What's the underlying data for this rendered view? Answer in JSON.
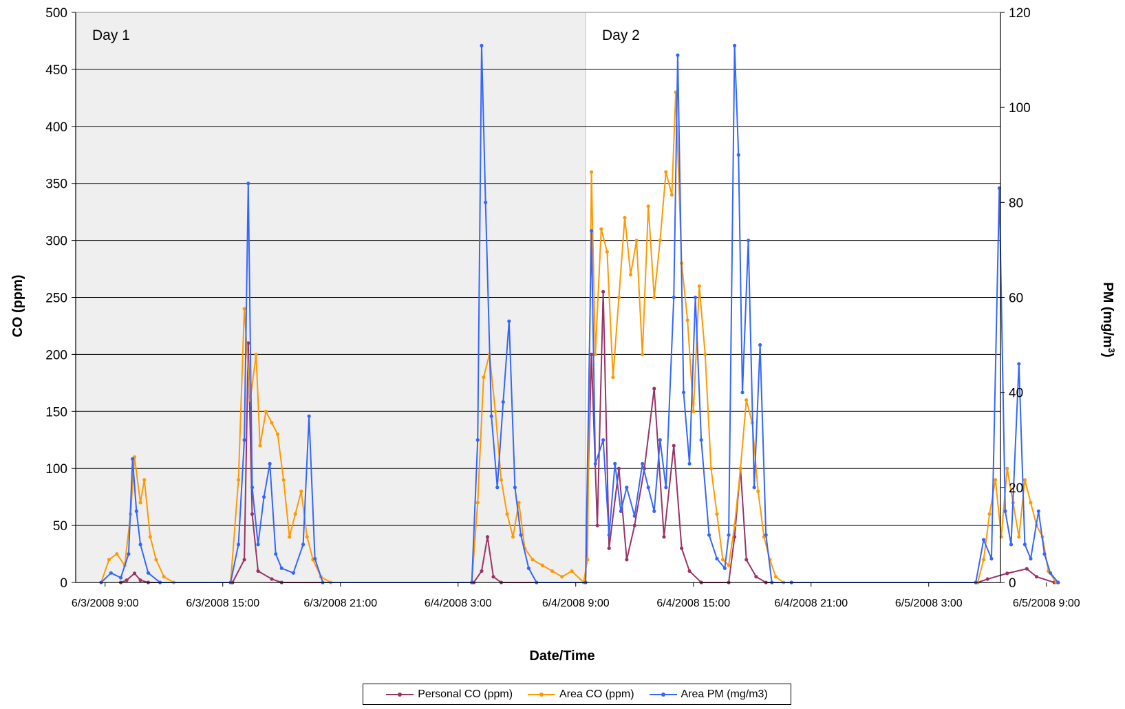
{
  "chart_data": {
    "type": "line",
    "xlabel": "Date/Time",
    "ylabel_left": "CO (ppm)",
    "ylabel_right": "PM (mg/m3)",
    "ylabel_right_parts": {
      "base": "PM (mg/m",
      "sup": "3",
      "close": ")"
    },
    "ylim_left": [
      0,
      500
    ],
    "ylim_right": [
      0,
      120
    ],
    "xlim_hours": [
      7.5,
      33.5
    ],
    "y_ticks_left": [
      "0",
      "50",
      "100",
      "150",
      "200",
      "250",
      "300",
      "350",
      "400",
      "450",
      "500"
    ],
    "y_ticks_right": [
      "0",
      "20",
      "40",
      "60",
      "80",
      "100",
      "120"
    ],
    "x_ticks": [
      {
        "h": 9,
        "label": "6/3/2008 9:00"
      },
      {
        "h": 15,
        "label": "6/3/2008 15:00"
      },
      {
        "h": 21,
        "label": "6/3/2008 21:00"
      },
      {
        "h": 27,
        "label": "6/4/2008 3:00"
      },
      {
        "h": 33,
        "label": "6/4/2008 9:00"
      },
      {
        "h": 39,
        "label": "6/4/2008 15:00"
      },
      {
        "h": 45,
        "label": "6/4/2008 21:00"
      },
      {
        "h": 51,
        "label": "6/5/2008 3:00"
      },
      {
        "h": 57,
        "label": "6/5/2008 9:00"
      }
    ],
    "x_ticks_note": "x positions in hours since 6/3/2008 0:00",
    "grid": "horizontal",
    "day_regions": [
      {
        "label": "Day 1",
        "from_h": 7.5,
        "to_h": 33.5,
        "shaded": true
      },
      {
        "label": "Day 2",
        "from_h": 33.5,
        "to_h": 59.5,
        "shaded": false
      }
    ],
    "series": [
      {
        "name": "Personal CO (ppm)",
        "color": "#993366",
        "axis": "left",
        "points": [
          [
            9.8,
            0
          ],
          [
            10.1,
            2
          ],
          [
            10.5,
            8
          ],
          [
            10.8,
            2
          ],
          [
            11.2,
            0
          ],
          [
            15.5,
            0
          ],
          [
            16.1,
            20
          ],
          [
            16.3,
            210
          ],
          [
            16.5,
            60
          ],
          [
            16.8,
            10
          ],
          [
            17.5,
            3
          ],
          [
            18,
            0
          ],
          [
            27.8,
            0
          ],
          [
            28.2,
            10
          ],
          [
            28.5,
            40
          ],
          [
            28.8,
            5
          ],
          [
            29.2,
            0
          ],
          [
            33.5,
            0
          ],
          [
            33.8,
            200
          ],
          [
            34.1,
            50
          ],
          [
            34.4,
            255
          ],
          [
            34.7,
            30
          ],
          [
            35.2,
            100
          ],
          [
            35.6,
            20
          ],
          [
            36,
            50
          ],
          [
            36.5,
            100
          ],
          [
            37,
            170
          ],
          [
            37.5,
            40
          ],
          [
            38,
            120
          ],
          [
            38.4,
            30
          ],
          [
            38.8,
            10
          ],
          [
            39.4,
            0
          ],
          [
            40.8,
            0
          ],
          [
            41.1,
            40
          ],
          [
            41.4,
            100
          ],
          [
            41.7,
            20
          ],
          [
            42.2,
            5
          ],
          [
            42.7,
            0
          ],
          [
            53.5,
            0
          ],
          [
            54,
            3
          ],
          [
            55,
            8
          ],
          [
            56,
            12
          ],
          [
            56.5,
            5
          ],
          [
            57.4,
            0
          ]
        ]
      },
      {
        "name": "Area CO (ppm)",
        "color": "#ff9900",
        "axis": "left",
        "points": [
          [
            8.8,
            0
          ],
          [
            9.2,
            20
          ],
          [
            9.6,
            25
          ],
          [
            10,
            15
          ],
          [
            10.3,
            60
          ],
          [
            10.5,
            110
          ],
          [
            10.8,
            70
          ],
          [
            11,
            90
          ],
          [
            11.3,
            40
          ],
          [
            11.6,
            20
          ],
          [
            12,
            5
          ],
          [
            12.5,
            0
          ],
          [
            15.4,
            0
          ],
          [
            15.8,
            90
          ],
          [
            16.1,
            240
          ],
          [
            16.4,
            160
          ],
          [
            16.7,
            200
          ],
          [
            16.9,
            120
          ],
          [
            17.2,
            150
          ],
          [
            17.5,
            140
          ],
          [
            17.8,
            130
          ],
          [
            18.1,
            90
          ],
          [
            18.4,
            40
          ],
          [
            18.7,
            60
          ],
          [
            19,
            80
          ],
          [
            19.3,
            40
          ],
          [
            19.6,
            20
          ],
          [
            20,
            5
          ],
          [
            20.5,
            0
          ],
          [
            27.7,
            0
          ],
          [
            28,
            70
          ],
          [
            28.3,
            180
          ],
          [
            28.6,
            200
          ],
          [
            28.9,
            150
          ],
          [
            29.2,
            90
          ],
          [
            29.5,
            60
          ],
          [
            29.8,
            40
          ],
          [
            30.1,
            70
          ],
          [
            30.4,
            30
          ],
          [
            30.8,
            20
          ],
          [
            31.3,
            15
          ],
          [
            31.8,
            10
          ],
          [
            32.3,
            5
          ],
          [
            32.8,
            10
          ],
          [
            33.4,
            0
          ],
          [
            33.6,
            20
          ],
          [
            33.8,
            360
          ],
          [
            34,
            200
          ],
          [
            34.3,
            310
          ],
          [
            34.6,
            290
          ],
          [
            34.9,
            180
          ],
          [
            35.2,
            250
          ],
          [
            35.5,
            320
          ],
          [
            35.8,
            270
          ],
          [
            36.1,
            300
          ],
          [
            36.4,
            200
          ],
          [
            36.7,
            330
          ],
          [
            37,
            250
          ],
          [
            37.3,
            300
          ],
          [
            37.6,
            360
          ],
          [
            37.9,
            340
          ],
          [
            38.1,
            430
          ],
          [
            38.4,
            280
          ],
          [
            38.7,
            230
          ],
          [
            39,
            150
          ],
          [
            39.3,
            260
          ],
          [
            39.6,
            200
          ],
          [
            39.9,
            100
          ],
          [
            40.2,
            60
          ],
          [
            40.5,
            20
          ],
          [
            40.8,
            15
          ],
          [
            41.1,
            50
          ],
          [
            41.4,
            100
          ],
          [
            41.7,
            160
          ],
          [
            42,
            140
          ],
          [
            42.3,
            80
          ],
          [
            42.6,
            40
          ],
          [
            42.9,
            20
          ],
          [
            43.2,
            5
          ],
          [
            43.6,
            0
          ],
          [
            53.5,
            0
          ],
          [
            53.8,
            20
          ],
          [
            54.1,
            60
          ],
          [
            54.4,
            90
          ],
          [
            54.7,
            40
          ],
          [
            55,
            100
          ],
          [
            55.3,
            70
          ],
          [
            55.6,
            40
          ],
          [
            55.9,
            90
          ],
          [
            56.2,
            70
          ],
          [
            56.5,
            50
          ],
          [
            56.8,
            40
          ],
          [
            57.1,
            10
          ],
          [
            57.5,
            0
          ]
        ]
      },
      {
        "name": "Area PM (mg/m3)",
        "color": "#3366ff",
        "axis": "right",
        "points": [
          [
            8.8,
            0
          ],
          [
            9.3,
            2
          ],
          [
            9.8,
            1
          ],
          [
            10.2,
            6
          ],
          [
            10.4,
            26
          ],
          [
            10.6,
            15
          ],
          [
            10.8,
            8
          ],
          [
            11.2,
            2
          ],
          [
            11.8,
            0
          ],
          [
            15.4,
            0
          ],
          [
            15.8,
            8
          ],
          [
            16.1,
            30
          ],
          [
            16.3,
            84
          ],
          [
            16.5,
            20
          ],
          [
            16.8,
            8
          ],
          [
            17.1,
            18
          ],
          [
            17.4,
            25
          ],
          [
            17.7,
            6
          ],
          [
            18,
            3
          ],
          [
            18.6,
            2
          ],
          [
            19.1,
            8
          ],
          [
            19.4,
            35
          ],
          [
            19.7,
            5
          ],
          [
            20.1,
            0
          ],
          [
            27.7,
            0
          ],
          [
            28,
            30
          ],
          [
            28.2,
            113
          ],
          [
            28.4,
            80
          ],
          [
            28.7,
            35
          ],
          [
            29,
            20
          ],
          [
            29.3,
            38
          ],
          [
            29.6,
            55
          ],
          [
            29.9,
            20
          ],
          [
            30.2,
            10
          ],
          [
            30.6,
            3
          ],
          [
            31,
            0
          ],
          [
            33.5,
            0
          ],
          [
            33.8,
            74
          ],
          [
            34,
            25
          ],
          [
            34.4,
            30
          ],
          [
            34.7,
            10
          ],
          [
            35,
            25
          ],
          [
            35.3,
            15
          ],
          [
            35.6,
            20
          ],
          [
            36,
            14
          ],
          [
            36.4,
            25
          ],
          [
            36.7,
            20
          ],
          [
            37,
            15
          ],
          [
            37.3,
            30
          ],
          [
            37.6,
            20
          ],
          [
            38,
            60
          ],
          [
            38.2,
            111
          ],
          [
            38.5,
            40
          ],
          [
            38.8,
            25
          ],
          [
            39.1,
            60
          ],
          [
            39.4,
            30
          ],
          [
            39.8,
            10
          ],
          [
            40.2,
            5
          ],
          [
            40.6,
            3
          ],
          [
            40.8,
            10
          ],
          [
            41.1,
            113
          ],
          [
            41.3,
            90
          ],
          [
            41.5,
            40
          ],
          [
            41.8,
            72
          ],
          [
            42.1,
            20
          ],
          [
            42.4,
            50
          ],
          [
            42.7,
            10
          ],
          [
            43,
            0
          ],
          [
            44,
            0
          ],
          [
            53.4,
            0
          ],
          [
            53.8,
            9
          ],
          [
            54.2,
            5
          ],
          [
            54.6,
            83
          ],
          [
            54.9,
            15
          ],
          [
            55.2,
            8
          ],
          [
            55.6,
            46
          ],
          [
            55.9,
            8
          ],
          [
            56.2,
            5
          ],
          [
            56.6,
            15
          ],
          [
            56.9,
            6
          ],
          [
            57.2,
            2
          ],
          [
            57.6,
            0
          ]
        ]
      }
    ],
    "legend": {
      "position": "bottom"
    }
  }
}
